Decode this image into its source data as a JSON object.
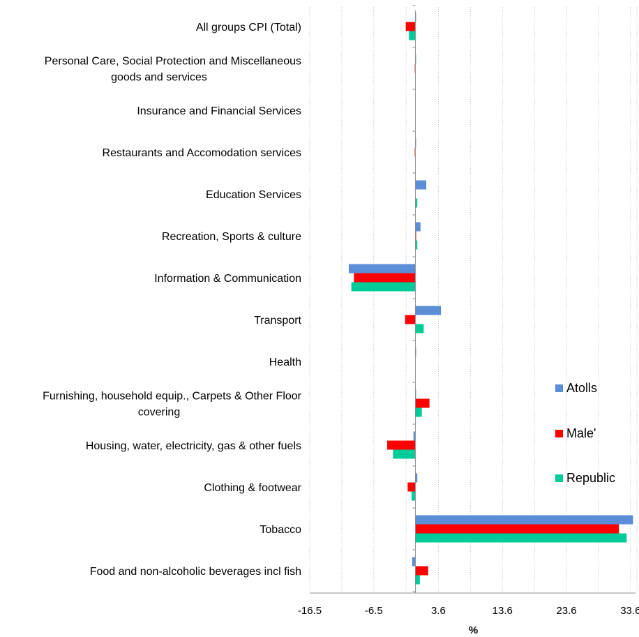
{
  "chart_data": {
    "type": "bar",
    "orientation": "horizontal",
    "categories": [
      "All groups CPI (Total)",
      "Personal Care, Social Protection and Miscellaneous goods and services",
      "Insurance and Financial Services",
      "Restaurants and Accomodation services",
      "Education Services",
      "Recreation, Sports & culture",
      "Information & Communication",
      "Transport",
      "Health",
      "Furnishing, household equip., Carpets & Other Floor covering",
      "Housing, water, electricity, gas & other fuels",
      "Clothing & footwear",
      "Tobacco",
      "Food and non-alcoholic beverages incl fish"
    ],
    "category_lines": [
      [
        "All groups CPI (Total)"
      ],
      [
        "Personal Care, Social Protection and Miscellaneous",
        "goods and services"
      ],
      [
        "Insurance and Financial Services"
      ],
      [
        "Restaurants and Accomodation services"
      ],
      [
        "Education Services"
      ],
      [
        "Recreation, Sports & culture"
      ],
      [
        "Information & Communication"
      ],
      [
        "Transport"
      ],
      [
        "Health"
      ],
      [
        "Furnishing, household equip., Carpets & Other Floor",
        "covering"
      ],
      [
        "Housing, water, electricity, gas & other fuels"
      ],
      [
        "Clothing & footwear"
      ],
      [
        "Tobacco"
      ],
      [
        "Food and non-alcoholic beverages incl fish"
      ]
    ],
    "series": [
      {
        "name": "Atolls",
        "color": "#5B8ED6",
        "values": [
          0.1,
          0.1,
          0.0,
          0.1,
          1.7,
          0.8,
          -10.4,
          4.0,
          0.1,
          0.1,
          -0.3,
          0.3,
          34.0,
          -0.5
        ]
      },
      {
        "name": "Male'",
        "color": "#FF0000",
        "values": [
          -1.5,
          -0.1,
          0.0,
          -0.1,
          0.0,
          0.1,
          -9.6,
          -1.6,
          0.0,
          2.2,
          -4.4,
          -1.2,
          31.8,
          2.0
        ]
      },
      {
        "name": "Republic",
        "color": "#00CC99",
        "values": [
          -1.0,
          0.0,
          0.0,
          0.0,
          0.3,
          0.3,
          -10.0,
          1.3,
          0.0,
          1.0,
          -3.5,
          -0.6,
          33.0,
          0.7
        ]
      }
    ],
    "xlim": [
      -16.5,
      34.6
    ],
    "xticks": [
      -16.5,
      -6.5,
      3.6,
      13.6,
      23.6,
      33.6
    ],
    "xtick_labels": [
      "-16.5",
      "-6.5",
      "3.6",
      "13.6",
      "23.6",
      "33.6"
    ],
    "xlabel": "%",
    "ylabel": "",
    "title": "",
    "grid": "vertical dotted",
    "legend_position": "right"
  }
}
